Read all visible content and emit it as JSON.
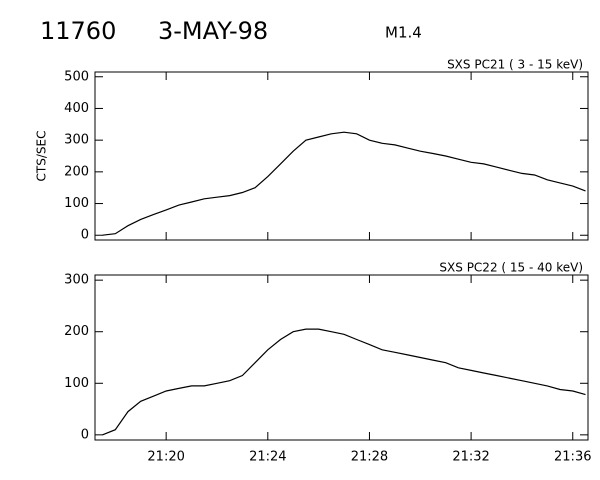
{
  "header": {
    "event": "11760",
    "date": "3-MAY-98",
    "class": "M1.4"
  },
  "chart_data": [
    {
      "type": "line",
      "title": "SXS PC21  (  3 - 15 keV)",
      "ylabel": "CTS/SEC",
      "color": "#000000",
      "x": [
        1277.5,
        1278,
        1278.5,
        1279,
        1279.5,
        1280,
        1280.5,
        1281,
        1281.5,
        1282,
        1282.5,
        1283,
        1283.5,
        1284,
        1284.5,
        1285,
        1285.5,
        1286,
        1286.5,
        1287,
        1287.5,
        1288,
        1288.5,
        1289,
        1289.5,
        1290,
        1290.5,
        1291,
        1291.5,
        1292,
        1292.5,
        1293,
        1293.5,
        1294,
        1294.5,
        1295,
        1295.5,
        1296,
        1296.5
      ],
      "values": [
        0,
        5,
        30,
        50,
        65,
        80,
        95,
        105,
        115,
        120,
        125,
        135,
        150,
        185,
        225,
        265,
        300,
        310,
        320,
        325,
        320,
        300,
        290,
        285,
        275,
        265,
        258,
        250,
        240,
        230,
        225,
        215,
        205,
        195,
        190,
        175,
        165,
        155,
        140
      ],
      "xlim": [
        1277.2,
        1296.6
      ],
      "xticks": [
        {
          "value": 1280,
          "label": "21:20"
        },
        {
          "value": 1284,
          "label": "21:24"
        },
        {
          "value": 1288,
          "label": "21:28"
        },
        {
          "value": 1292,
          "label": "21:32"
        },
        {
          "value": 1296,
          "label": "21:36"
        }
      ],
      "ylim": [
        -15,
        515
      ],
      "yticks": [
        0,
        100,
        200,
        300,
        400,
        500
      ]
    },
    {
      "type": "line",
      "title": "SXS PC22  ( 15 - 40 keV)",
      "color": "#000000",
      "x": [
        1277.5,
        1278,
        1278.5,
        1279,
        1279.5,
        1280,
        1280.5,
        1281,
        1281.5,
        1282,
        1282.5,
        1283,
        1283.5,
        1284,
        1284.5,
        1285,
        1285.5,
        1286,
        1286.5,
        1287,
        1287.5,
        1288,
        1288.5,
        1289,
        1289.5,
        1290,
        1290.5,
        1291,
        1291.5,
        1292,
        1292.5,
        1293,
        1293.5,
        1294,
        1294.5,
        1295,
        1295.5,
        1296,
        1296.5
      ],
      "values": [
        0,
        10,
        45,
        65,
        75,
        85,
        90,
        95,
        95,
        100,
        105,
        115,
        140,
        165,
        185,
        200,
        205,
        205,
        200,
        195,
        185,
        175,
        165,
        160,
        155,
        150,
        145,
        140,
        130,
        125,
        120,
        115,
        110,
        105,
        100,
        95,
        88,
        85,
        78
      ],
      "xlim": [
        1277.2,
        1296.6
      ],
      "xticks": [
        {
          "value": 1280,
          "label": "21:20"
        },
        {
          "value": 1284,
          "label": "21:24"
        },
        {
          "value": 1288,
          "label": "21:28"
        },
        {
          "value": 1292,
          "label": "21:32"
        },
        {
          "value": 1296,
          "label": "21:36"
        }
      ],
      "ylim": [
        -10,
        310
      ],
      "yticks": [
        0,
        100,
        200,
        300
      ]
    }
  ]
}
